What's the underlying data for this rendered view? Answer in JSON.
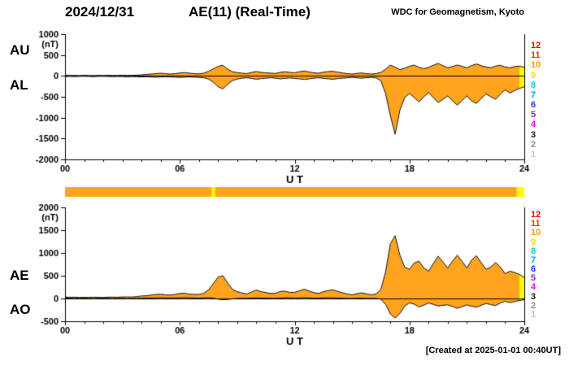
{
  "header": {
    "date": "2024/12/31",
    "title": "AE(11) (Real-Time)",
    "credit": "WDC for Geomagnetism, Kyoto"
  },
  "labels": {
    "au": "AU",
    "al": "AL",
    "ae": "AE",
    "ao": "AO"
  },
  "footer": {
    "created": "[Created at 2025-01-01 00:40UT]"
  },
  "colors": {
    "fill": "#FFA41C",
    "outline": "#111111",
    "marker": "#FFFF00",
    "axis": "#000000"
  },
  "station_scale": [
    {
      "n": "12",
      "color": "#FF0000"
    },
    {
      "n": "11",
      "color": "#FF3200"
    },
    {
      "n": "10",
      "color": "#FF9C00"
    },
    {
      "n": "9",
      "color": "#FFDC00"
    },
    {
      "n": "8",
      "color": "#00D2D2"
    },
    {
      "n": "7",
      "color": "#00AAE6"
    },
    {
      "n": "6",
      "color": "#1E3CFF"
    },
    {
      "n": "5",
      "color": "#8C28DC"
    },
    {
      "n": "4",
      "color": "#FF00FF"
    },
    {
      "n": "3",
      "color": "#1A1A1A"
    },
    {
      "n": "2",
      "color": "#8C8C8C"
    },
    {
      "n": "1",
      "color": "#C8C8C8"
    }
  ],
  "availability_bar": {
    "segments": [
      {
        "start": 7.65,
        "end": 7.85
      },
      {
        "start": 23.6,
        "end": 24
      }
    ]
  },
  "chart_data": [
    {
      "type": "area",
      "name": "AU-AL panel",
      "ylabel": "(nT)",
      "xlabel": "U T",
      "xlim": [
        0,
        24
      ],
      "ylim": [
        -2000,
        1000
      ],
      "yticks": [
        1000,
        500,
        0,
        -500,
        -1000,
        -1500,
        -2000
      ],
      "xticks": [
        0,
        6,
        12,
        18,
        24
      ],
      "xtick_labels": [
        "00",
        "06",
        "12",
        "18",
        "24"
      ],
      "minor_xtick_every": 1,
      "x_start": 0,
      "x_step": 0.25,
      "final_segment_start": 23.75,
      "series": [
        {
          "name": "AU",
          "values": [
            15,
            10,
            12,
            8,
            14,
            10,
            8,
            12,
            10,
            14,
            10,
            12,
            15,
            10,
            14,
            18,
            25,
            35,
            45,
            55,
            65,
            55,
            45,
            55,
            70,
            80,
            65,
            55,
            50,
            65,
            110,
            170,
            230,
            255,
            160,
            100,
            80,
            65,
            55,
            85,
            105,
            85,
            75,
            65,
            60,
            85,
            100,
            85,
            75,
            100,
            120,
            95,
            75,
            65,
            90,
            105,
            110,
            90,
            70,
            55,
            45,
            60,
            70,
            55,
            45,
            55,
            85,
            160,
            260,
            210,
            150,
            185,
            230,
            260,
            205,
            175,
            205,
            255,
            300,
            245,
            195,
            225,
            260,
            230,
            195,
            250,
            285,
            245,
            215,
            195,
            235,
            255,
            215,
            195,
            225,
            235,
            205
          ]
        },
        {
          "name": "AL",
          "values": [
            -15,
            -10,
            -14,
            -10,
            -8,
            -12,
            -16,
            -10,
            -8,
            -12,
            -16,
            -12,
            -15,
            -20,
            -15,
            -20,
            -25,
            -20,
            -25,
            -30,
            -25,
            -20,
            -25,
            -30,
            -35,
            -30,
            -25,
            -30,
            -35,
            -45,
            -75,
            -150,
            -260,
            -310,
            -200,
            -110,
            -75,
            -55,
            -45,
            -60,
            -80,
            -65,
            -55,
            -45,
            -55,
            -70,
            -60,
            -50,
            -60,
            -70,
            -85,
            -70,
            -55,
            -45,
            -60,
            -70,
            -80,
            -65,
            -55,
            -45,
            -35,
            -45,
            -55,
            -45,
            -35,
            -45,
            -110,
            -420,
            -950,
            -1400,
            -820,
            -520,
            -420,
            -520,
            -620,
            -500,
            -400,
            -520,
            -640,
            -560,
            -480,
            -600,
            -700,
            -590,
            -480,
            -600,
            -660,
            -540,
            -430,
            -500,
            -560,
            -440,
            -330,
            -410,
            -350,
            -300,
            -260
          ]
        }
      ]
    },
    {
      "type": "area",
      "name": "AE-AO panel",
      "ylabel": "(nT)",
      "xlabel": "U T",
      "xlim": [
        0,
        24
      ],
      "ylim": [
        -500,
        2000
      ],
      "yticks": [
        2000,
        1500,
        1000,
        500,
        0,
        -500
      ],
      "xticks": [
        0,
        6,
        12,
        18,
        24
      ],
      "xtick_labels": [
        "00",
        "06",
        "12",
        "18",
        "24"
      ],
      "minor_xtick_every": 1,
      "x_start": 0,
      "x_step": 0.25,
      "final_segment_start": 23.75,
      "series": [
        {
          "name": "AE",
          "values": [
            35,
            25,
            30,
            22,
            26,
            24,
            28,
            25,
            22,
            30,
            30,
            28,
            34,
            34,
            33,
            42,
            55,
            60,
            75,
            90,
            95,
            80,
            75,
            90,
            110,
            115,
            95,
            90,
            90,
            115,
            190,
            330,
            470,
            500,
            340,
            200,
            150,
            120,
            100,
            145,
            185,
            150,
            130,
            110,
            115,
            155,
            160,
            135,
            135,
            170,
            205,
            165,
            130,
            110,
            150,
            175,
            190,
            155,
            125,
            100,
            80,
            105,
            125,
            100,
            80,
            100,
            195,
            580,
            1200,
            1380,
            950,
            690,
            640,
            780,
            820,
            670,
            600,
            770,
            930,
            800,
            670,
            820,
            950,
            815,
            670,
            845,
            940,
            785,
            640,
            690,
            790,
            690,
            545,
            600,
            570,
            530,
            460
          ]
        },
        {
          "name": "AO",
          "values": [
            10,
            6,
            2,
            5,
            8,
            2,
            -2,
            4,
            6,
            2,
            -2,
            3,
            5,
            -3,
            2,
            4,
            6,
            10,
            12,
            14,
            18,
            15,
            12,
            14,
            16,
            20,
            16,
            12,
            8,
            12,
            18,
            10,
            -15,
            -28,
            -22,
            -8,
            2,
            6,
            4,
            10,
            14,
            10,
            8,
            6,
            4,
            8,
            16,
            14,
            10,
            14,
            18,
            12,
            8,
            6,
            12,
            16,
            14,
            10,
            6,
            4,
            2,
            6,
            8,
            4,
            2,
            4,
            -15,
            -130,
            -340,
            -430,
            -330,
            -170,
            -95,
            -125,
            -185,
            -145,
            -100,
            -130,
            -165,
            -150,
            -140,
            -175,
            -215,
            -180,
            -140,
            -170,
            -190,
            -150,
            -110,
            -135,
            -155,
            -100,
            -60,
            -90,
            -65,
            -45,
            -25
          ]
        }
      ]
    }
  ]
}
